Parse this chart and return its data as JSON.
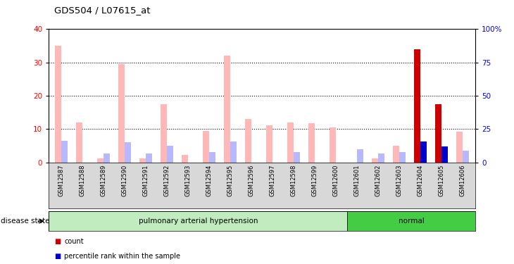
{
  "title": "GDS504 / L07615_at",
  "samples": [
    "GSM12587",
    "GSM12588",
    "GSM12589",
    "GSM12590",
    "GSM12591",
    "GSM12592",
    "GSM12593",
    "GSM12594",
    "GSM12595",
    "GSM12596",
    "GSM12597",
    "GSM12598",
    "GSM12599",
    "GSM12600",
    "GSM12601",
    "GSM12602",
    "GSM12603",
    "GSM12604",
    "GSM12605",
    "GSM12606"
  ],
  "value_absent": [
    35.0,
    12.0,
    1.2,
    29.5,
    1.2,
    17.5,
    2.2,
    9.5,
    32.0,
    13.0,
    11.2,
    12.0,
    11.8,
    10.5,
    0.0,
    1.2,
    5.0,
    34.0,
    17.5,
    9.2
  ],
  "rank_absent": [
    16.0,
    0.0,
    6.5,
    15.0,
    6.5,
    12.5,
    0.0,
    7.5,
    15.5,
    0.0,
    0.0,
    7.5,
    0.0,
    0.0,
    10.0,
    6.5,
    7.5,
    0.0,
    0.0,
    9.0
  ],
  "count_present": [
    0,
    0,
    0,
    0,
    0,
    0,
    0,
    0,
    0,
    0,
    0,
    0,
    0,
    0,
    0,
    0,
    0,
    34.0,
    17.5,
    0
  ],
  "rank_present": [
    0,
    0,
    0,
    0,
    0,
    0,
    0,
    0,
    0,
    0,
    0,
    0,
    0,
    0,
    0,
    0,
    0,
    15.5,
    12.0,
    0
  ],
  "disease_groups": [
    {
      "label": "pulmonary arterial hypertension",
      "start": 0,
      "end": 14,
      "color": "#c0ecc0"
    },
    {
      "label": "normal",
      "start": 14,
      "end": 20,
      "color": "#44cc44"
    }
  ],
  "ylim_left": [
    0,
    40
  ],
  "ylim_right": [
    0,
    100
  ],
  "yticks_left": [
    0,
    10,
    20,
    30,
    40
  ],
  "yticks_right": [
    0,
    25,
    50,
    75,
    100
  ],
  "bar_width": 0.3,
  "absent_value_color": "#ffb8b8",
  "absent_rank_color": "#b8b8ff",
  "present_value_color": "#cc0000",
  "present_rank_color": "#0000cc",
  "background_color": "#ffffff",
  "plot_bg_color": "#ffffff",
  "label_area_color": "#d8d8d8"
}
